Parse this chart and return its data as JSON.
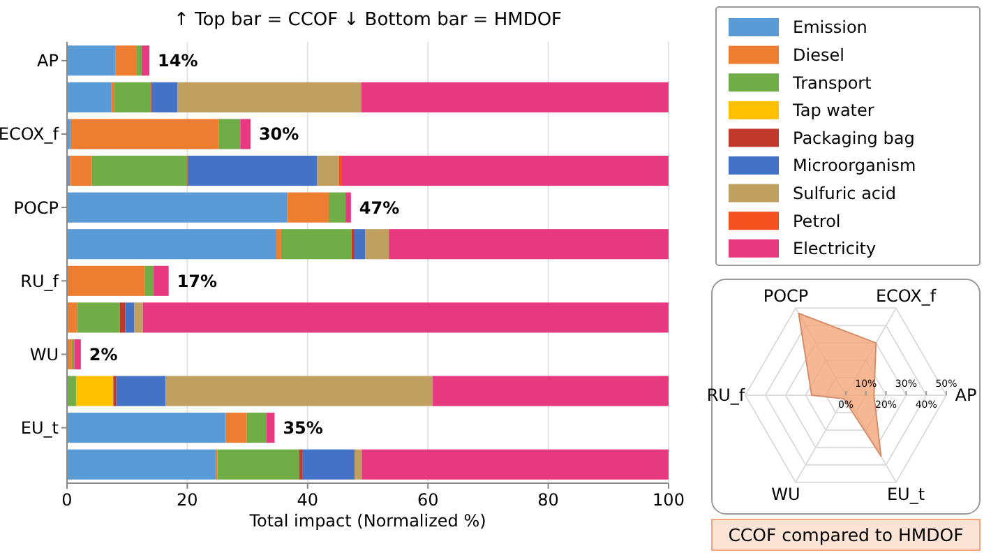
{
  "chart_data": [
    {
      "type": "bar",
      "orientation": "horizontal",
      "stacked": true,
      "title": "↑ Top bar = CCOF  ↓ Bottom bar = HMDOF",
      "xlabel": "Total impact (Normalized %)",
      "categories": [
        "AP",
        null,
        "ECOX_f",
        null,
        "POCP",
        null,
        "RU_f",
        null,
        "WU",
        null,
        "EU_t",
        null
      ],
      "series": [
        {
          "name": "Emission",
          "color": "#5b9bd5",
          "values": [
            8.1,
            7.4,
            0.6,
            0.5,
            36.6,
            34.8,
            0,
            0,
            0,
            0,
            26.4,
            24.7
          ]
        },
        {
          "name": "Diesel",
          "color": "#ed7d31",
          "values": [
            3.4,
            0.5,
            24.6,
            3.6,
            6.9,
            0.8,
            12.9,
            1.7,
            0.8,
            0,
            3.5,
            0.3
          ]
        },
        {
          "name": "Transport",
          "color": "#70ad47",
          "values": [
            0.9,
            6.0,
            3.6,
            15.9,
            2.8,
            11.7,
            1.5,
            7.1,
            0.4,
            1.5,
            3.2,
            13.6
          ]
        },
        {
          "name": "Tap water",
          "color": "#ffc000",
          "values": [
            0,
            0,
            0,
            0,
            0,
            0,
            0,
            0,
            0,
            6.2,
            0,
            0
          ]
        },
        {
          "name": "Packaging bag",
          "color": "#c0392b",
          "values": [
            0,
            0.2,
            0,
            0.2,
            0,
            0.5,
            0,
            0.9,
            0,
            0.5,
            0,
            0.5
          ]
        },
        {
          "name": "Microorganism",
          "color": "#4472c4",
          "values": [
            0,
            4.3,
            0,
            21.4,
            0,
            1.8,
            0,
            1.5,
            0,
            8.2,
            0,
            8.7
          ]
        },
        {
          "name": "Sulfuric acid",
          "color": "#bfa060",
          "values": [
            0,
            30.5,
            0,
            3.6,
            0,
            3.9,
            0,
            1.4,
            0,
            44.4,
            0,
            1.2
          ]
        },
        {
          "name": "Petrol",
          "color": "#f4511e",
          "values": [
            0,
            0,
            0,
            0.4,
            0,
            0,
            0,
            0,
            0,
            0,
            0,
            0
          ]
        },
        {
          "name": "Electricity",
          "color": "#e6397f",
          "values": [
            1.3,
            51.1,
            1.7,
            54.4,
            0.9,
            46.5,
            2.5,
            87.4,
            1.1,
            39.2,
            1.4,
            51.0
          ]
        }
      ],
      "totals": [
        "14%",
        null,
        "30%",
        null,
        "47%",
        null,
        "17%",
        null,
        "2%",
        null,
        "35%",
        null
      ],
      "xlim": [
        0,
        100
      ],
      "xticks": [
        0,
        20,
        40,
        60,
        80,
        100
      ],
      "grid": "x",
      "legend": "top right"
    },
    {
      "type": "radar",
      "title": "CCOF compared to HMDOF",
      "categories": [
        "POCP",
        "ECOX_f",
        "AP",
        "EU_t",
        "WU",
        "RU_f"
      ],
      "series": [
        {
          "color": "#f4a57a",
          "values": [
            47,
            30,
            14,
            35,
            2,
            17
          ]
        }
      ],
      "ylim": [
        0,
        50
      ],
      "yticks": [
        {
          "value": 0,
          "label": "0%"
        },
        {
          "value": 10,
          "label": "10%"
        },
        {
          "value": 20,
          "label": "20%"
        },
        {
          "value": 30,
          "label": "30%"
        },
        {
          "value": 40,
          "label": "40%"
        },
        {
          "value": 50,
          "label": "50%"
        }
      ],
      "grid": true
    }
  ]
}
